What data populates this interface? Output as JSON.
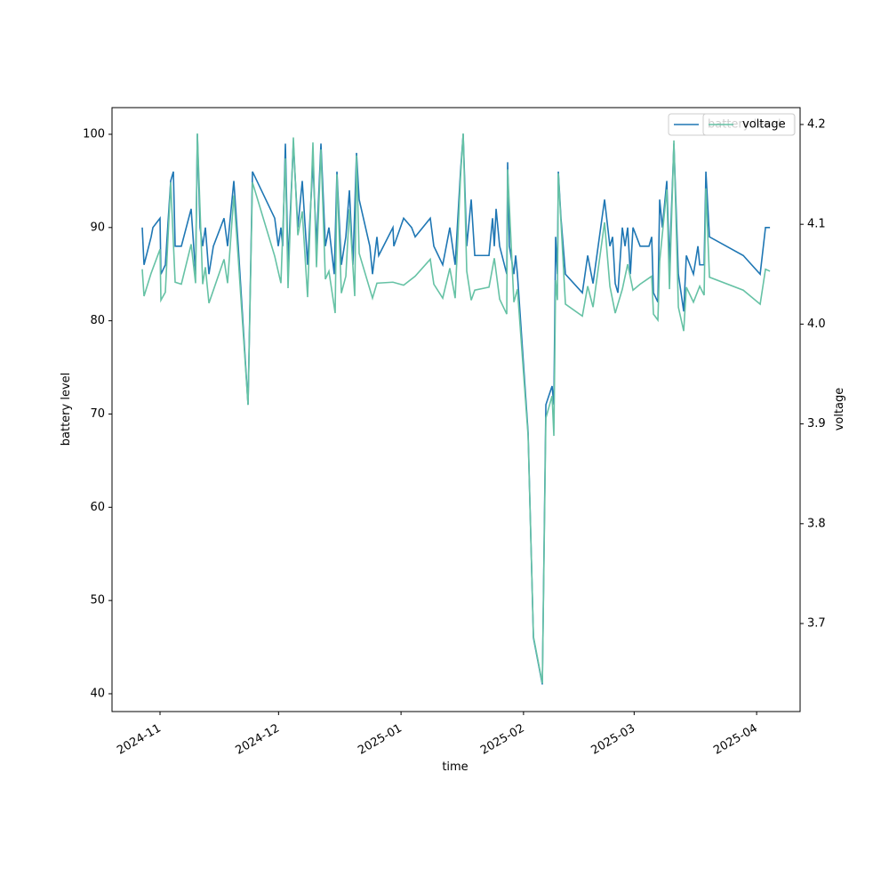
{
  "chart_data": {
    "type": "line",
    "x_label": "time",
    "y_label": "battery level",
    "y2_label": "voltage",
    "xlim": [
      -12.15,
      162.0
    ],
    "xticks": [
      {
        "value": 0,
        "label": "2024-11"
      },
      {
        "value": 30,
        "label": "2024-12"
      },
      {
        "value": 61,
        "label": "2025-01"
      },
      {
        "value": 92,
        "label": "2025-02"
      },
      {
        "value": 120,
        "label": "2025-03"
      },
      {
        "value": 151,
        "label": "2025-04"
      }
    ],
    "ylim": [
      38.09,
      102.86
    ],
    "yticks": [
      40,
      50,
      60,
      70,
      80,
      90,
      100
    ],
    "y2lim": [
      3.6118,
      4.2169
    ],
    "y2ticks": [
      3.7,
      3.8,
      3.9,
      {
        "value": 4,
        "label": "4.0"
      },
      4.1,
      4.2
    ],
    "legend": "upper right",
    "series": [
      {
        "name": "battery level",
        "color": "#1f77b4",
        "x": [
          -4.5,
          -4.05,
          -2.25,
          -1.8,
          0,
          0.23,
          1.35,
          2.7,
          3.38,
          3.83,
          5.4,
          7.88,
          9,
          9.45,
          10.13,
          10.8,
          11.48,
          12.38,
          13.5,
          15.3,
          16.2,
          17.1,
          18.68,
          19.8,
          22.28,
          23.4,
          29.03,
          29.93,
          30.6,
          31.05,
          31.73,
          32.4,
          33.75,
          34.88,
          36,
          37.35,
          38.7,
          39.6,
          40.73,
          41.85,
          42.75,
          44.1,
          44.78,
          45.9,
          47.03,
          47.93,
          48.83,
          49.73,
          50.4,
          53.1,
          53.78,
          54.9,
          55.35,
          58.95,
          59.18,
          61.66,
          63.68,
          64.58,
          68.4,
          69.3,
          71.55,
          72.9,
          73.35,
          74.7,
          76.05,
          76.73,
          77.63,
          78.76,
          79.66,
          83.26,
          84.16,
          84.61,
          85.06,
          85.96,
          87.76,
          87.98,
          88.43,
          89.56,
          90.01,
          90.46,
          93.16,
          94.51,
          96.76,
          97.66,
          99.23,
          99.68,
          100.13,
          100.58,
          100.81,
          101.48,
          102.61,
          106.89,
          108.24,
          109.59,
          112.51,
          113.86,
          114.54,
          115.21,
          115.89,
          117.01,
          117.69,
          118.36,
          119.04,
          119.71,
          121.51,
          123.76,
          124.44,
          124.89,
          126.01,
          126.46,
          127.14,
          128.26,
          128.94,
          130.06,
          131.19,
          132.54,
          133.21,
          135.01,
          136.14,
          136.59,
          137.71,
          138.16,
          139.06,
          147.61,
          151.89,
          153.24,
          154.37
        ],
        "values": [
          90,
          86,
          89,
          90,
          91,
          85,
          86,
          95,
          96,
          88,
          88,
          92,
          85,
          100,
          90,
          88,
          90,
          85,
          88,
          90,
          91,
          88,
          95,
          88,
          71,
          96,
          91,
          88,
          90,
          88,
          99,
          86,
          99,
          90,
          95,
          86,
          97,
          88,
          99,
          88,
          90,
          85,
          96,
          86,
          89,
          94,
          86,
          98,
          93,
          88,
          85,
          89,
          87,
          90,
          88,
          91,
          90,
          89,
          91,
          88,
          86,
          89,
          90,
          86,
          96,
          100,
          88,
          93,
          87,
          87,
          91,
          88,
          92,
          88,
          85,
          97,
          88,
          85,
          87,
          85,
          68,
          46,
          41,
          71,
          73,
          71,
          89,
          85,
          96,
          91,
          85,
          83,
          87,
          84,
          93,
          88,
          89,
          84,
          83,
          90,
          88,
          90,
          85,
          90,
          88,
          88,
          89,
          83,
          82,
          93,
          90,
          95,
          86,
          99,
          85,
          81,
          87,
          85,
          88,
          86,
          86,
          96,
          89,
          87,
          85,
          90,
          90
        ]
      },
      {
        "name": "voltage",
        "color": "#66c2a5",
        "axis": "y2",
        "x": [
          -4.5,
          -4.05,
          -2.25,
          0,
          0.23,
          1.35,
          2.7,
          3.83,
          5.4,
          7.88,
          9,
          9.45,
          10.8,
          11.48,
          12.38,
          16.2,
          17.1,
          18.68,
          19.8,
          22.28,
          23.4,
          29.03,
          30.6,
          31.73,
          32.4,
          33.75,
          34.88,
          36,
          37.35,
          38.7,
          39.6,
          40.73,
          41.85,
          42.75,
          44.33,
          44.78,
          45.9,
          47.03,
          47.93,
          49.28,
          49.73,
          50.4,
          53.78,
          54.9,
          58.95,
          61.66,
          64.58,
          68.4,
          69.3,
          71.55,
          73.35,
          74.7,
          76.05,
          76.73,
          77.63,
          78.76,
          79.66,
          83.26,
          84.61,
          85.96,
          87.76,
          87.98,
          89.56,
          90.46,
          93.16,
          94.51,
          96.76,
          97.66,
          99.23,
          99.68,
          100.13,
          100.58,
          100.81,
          102.61,
          106.89,
          108.24,
          109.59,
          112.51,
          113.86,
          115.21,
          117.01,
          118.36,
          119.71,
          121.51,
          124.44,
          124.89,
          126.01,
          126.46,
          128.26,
          128.94,
          130.06,
          131.19,
          132.54,
          133.21,
          135.01,
          136.59,
          137.71,
          138.16,
          139.06,
          147.61,
          151.89,
          153.24,
          154.37
        ],
        "values": [
          4.055,
          4.028,
          4.051,
          4.075,
          4.024,
          4.032,
          4.142,
          4.042,
          4.04,
          4.08,
          4.041,
          4.191,
          4.04,
          4.057,
          4.021,
          4.065,
          4.041,
          4.129,
          4.066,
          3.919,
          4.142,
          4.068,
          4.041,
          4.166,
          4.036,
          4.187,
          4.089,
          4.113,
          4.027,
          4.182,
          4.057,
          4.175,
          4.045,
          4.053,
          4.011,
          4.15,
          4.031,
          4.048,
          4.115,
          4.028,
          4.169,
          4.071,
          4.026,
          4.041,
          4.042,
          4.039,
          4.048,
          4.065,
          4.04,
          4.026,
          4.056,
          4.026,
          4.147,
          4.191,
          4.053,
          4.024,
          4.034,
          4.037,
          4.066,
          4.025,
          4.01,
          4.155,
          4.022,
          4.035,
          3.888,
          3.687,
          3.64,
          3.906,
          3.928,
          3.888,
          4.044,
          4.024,
          4.151,
          4.02,
          4.008,
          4.038,
          4.017,
          4.102,
          4.038,
          4.011,
          4.035,
          4.06,
          4.034,
          4.04,
          4.048,
          4.01,
          4.004,
          4.063,
          4.135,
          4.035,
          4.184,
          4.017,
          3.993,
          4.037,
          4.022,
          4.038,
          4.029,
          4.136,
          4.047,
          4.034,
          4.02,
          4.055,
          4.053
        ]
      }
    ]
  }
}
